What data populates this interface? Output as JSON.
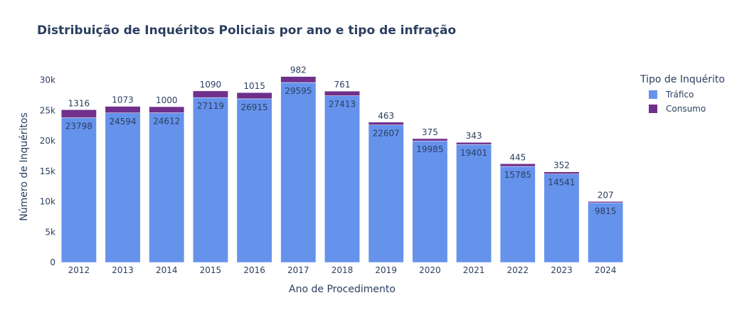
{
  "chart_data": {
    "type": "bar",
    "stacked": true,
    "title": "Distribuição de Inquéritos Policiais por ano e tipo de infração",
    "xlabel": "Ano de Procedimento",
    "ylabel": "Número de Inquéritos",
    "categories": [
      "2012",
      "2013",
      "2014",
      "2015",
      "2016",
      "2017",
      "2018",
      "2019",
      "2020",
      "2021",
      "2022",
      "2023",
      "2024"
    ],
    "series": [
      {
        "name": "Tráfico",
        "color": "#6592eb",
        "values": [
          23798,
          24594,
          24612,
          27119,
          26915,
          29595,
          27413,
          22607,
          19985,
          19401,
          15785,
          14541,
          9815
        ]
      },
      {
        "name": "Consumo",
        "color": "#6f2f8b",
        "values": [
          1316,
          1073,
          1000,
          1090,
          1015,
          982,
          761,
          463,
          375,
          343,
          445,
          352,
          207
        ]
      }
    ],
    "ylim": [
      0,
      31000
    ],
    "yticks": [
      0,
      5000,
      10000,
      15000,
      20000,
      25000,
      30000
    ],
    "ytick_labels": [
      "0",
      "5k",
      "10k",
      "15k",
      "20k",
      "25k",
      "30k"
    ],
    "grid": false,
    "legend_title": "Tipo de Inquérito",
    "legend_position": "top-right"
  }
}
